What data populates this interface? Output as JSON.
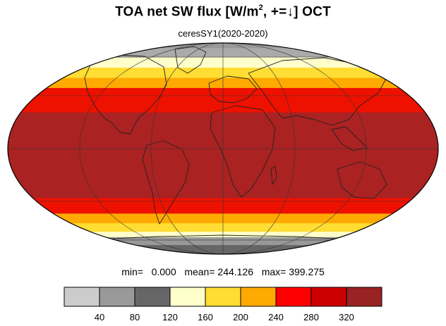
{
  "header": {
    "title_prefix": "TOA net SW flux [W/m",
    "title_sup": "2",
    "title_suffix": ", +=↓]  OCT",
    "subtitle": "ceresSY1(2020-2020)"
  },
  "stats": {
    "min_label": "min=",
    "min_value": "0.000",
    "mean_label": "mean=",
    "mean_value": "244.126",
    "max_label": "max=",
    "max_value": "399.275"
  },
  "colorbar": {
    "colors": [
      "#cccccc",
      "#999999",
      "#666666",
      "#ffffcc",
      "#ffdd33",
      "#ffaa00",
      "#ff0000",
      "#cc0000",
      "#992222"
    ],
    "tick_labels": [
      "40",
      "80",
      "120",
      "160",
      "200",
      "240",
      "280",
      "320"
    ]
  },
  "map": {
    "projection": "mollweide",
    "latitude_bands": [
      {
        "lat_top": 90,
        "lat_bottom": 72,
        "color": "#999999"
      },
      {
        "lat_top": 72,
        "lat_bottom": 60,
        "color": "#aaaaaa"
      },
      {
        "lat_top": 60,
        "lat_bottom": 50,
        "color": "#ffffcc"
      },
      {
        "lat_top": 50,
        "lat_bottom": 42,
        "color": "#ffdd33"
      },
      {
        "lat_top": 42,
        "lat_bottom": 35,
        "color": "#ffaa00"
      },
      {
        "lat_top": 35,
        "lat_bottom": 20,
        "color": "#ee1100"
      },
      {
        "lat_top": 20,
        "lat_bottom": -28,
        "color": "#aa2222"
      },
      {
        "lat_top": -28,
        "lat_bottom": -38,
        "color": "#ee1100"
      },
      {
        "lat_top": -38,
        "lat_bottom": -45,
        "color": "#ffaa00"
      },
      {
        "lat_top": -45,
        "lat_bottom": -52,
        "color": "#ffdd33"
      },
      {
        "lat_top": -52,
        "lat_bottom": -57,
        "color": "#ffffcc"
      },
      {
        "lat_top": -57,
        "lat_bottom": -66,
        "color": "#999999"
      },
      {
        "lat_top": -66,
        "lat_bottom": -90,
        "color": "#666666"
      }
    ]
  }
}
